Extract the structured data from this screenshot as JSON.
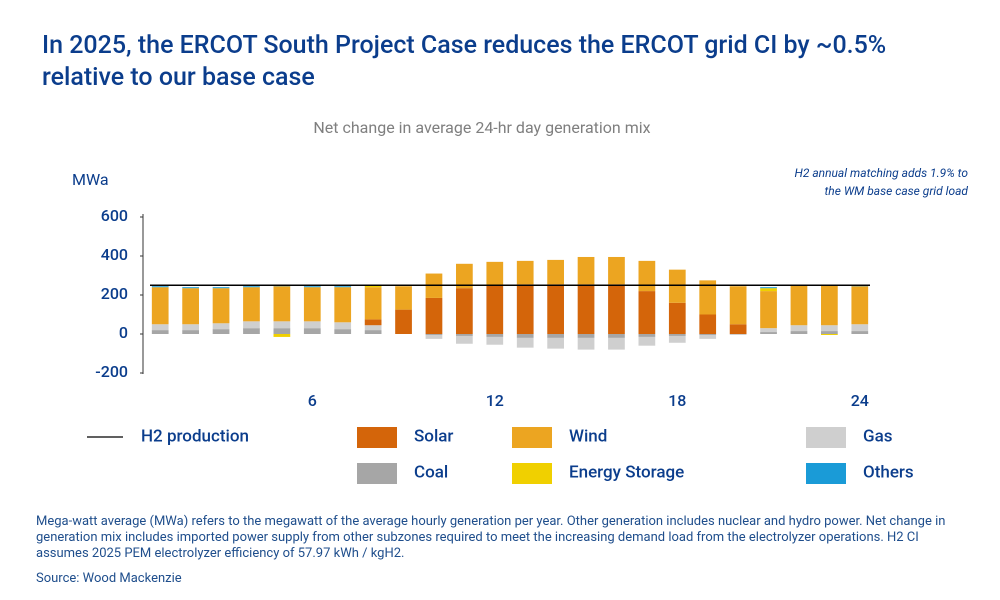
{
  "chart_data": {
    "type": "bar",
    "stacked": true,
    "title": "In 2025, the ERCOT South Project Case reduces the ERCOT grid CI by ~0.5% relative to our base case",
    "subtitle": "Net change in average 24-hr day generation mix",
    "y_label": "MWa",
    "annotation": [
      "H2 annual matching adds 1.9% to",
      "the WM base case grid load"
    ],
    "x": [
      1,
      2,
      3,
      4,
      5,
      6,
      7,
      8,
      9,
      10,
      11,
      12,
      13,
      14,
      15,
      16,
      17,
      18,
      19,
      20,
      21,
      22,
      23,
      24
    ],
    "xlim": [
      0.5,
      24.5
    ],
    "xticks": [
      6,
      12,
      18,
      24
    ],
    "ylim": [
      -200,
      600
    ],
    "yticks": [
      -200,
      0,
      200,
      400,
      600
    ],
    "line": {
      "name": "H2 production",
      "color": "#000000",
      "value": 250
    },
    "series": [
      {
        "name": "Coal",
        "color": "#a6a6a6",
        "values": [
          20,
          20,
          25,
          30,
          30,
          30,
          25,
          20,
          0,
          -5,
          -10,
          -15,
          -20,
          -20,
          -20,
          -20,
          -15,
          -10,
          -5,
          0,
          10,
          15,
          15,
          15
        ]
      },
      {
        "name": "Gas",
        "color": "#cfcfcf",
        "values": [
          30,
          30,
          30,
          35,
          35,
          35,
          35,
          25,
          0,
          -20,
          -40,
          -40,
          -50,
          -55,
          -60,
          -60,
          -45,
          -35,
          -20,
          -5,
          20,
          30,
          30,
          35
        ]
      },
      {
        "name": "Solar",
        "color": "#d4650a",
        "values": [
          0,
          0,
          0,
          0,
          0,
          0,
          0,
          30,
          125,
          185,
          235,
          250,
          255,
          255,
          255,
          255,
          220,
          160,
          100,
          50,
          0,
          0,
          0,
          0
        ]
      },
      {
        "name": "Wind",
        "color": "#eca521",
        "values": [
          190,
          185,
          180,
          175,
          180,
          175,
          180,
          165,
          120,
          125,
          125,
          120,
          120,
          125,
          140,
          140,
          155,
          170,
          175,
          195,
          190,
          205,
          205,
          195
        ]
      },
      {
        "name": "Energy Storage",
        "color": "#f0d000",
        "values": [
          0,
          0,
          0,
          0,
          -15,
          0,
          0,
          10,
          0,
          0,
          0,
          0,
          0,
          0,
          0,
          0,
          0,
          0,
          0,
          0,
          15,
          0,
          -5,
          0
        ]
      },
      {
        "name": "Others",
        "color": "#1a9bd7",
        "values": [
          5,
          5,
          5,
          5,
          5,
          5,
          5,
          0,
          0,
          0,
          0,
          0,
          0,
          0,
          0,
          0,
          0,
          0,
          0,
          0,
          5,
          0,
          0,
          5
        ]
      }
    ],
    "footnote": "Mega-watt average (MWa) refers to the megawatt of the average hourly generation per year. Other generation includes nuclear and hydro power. Net change in generation mix includes imported power supply from other subzones required to meet the increasing demand load from the electrolyzer operations. H2 CI assumes 2025 PEM electrolyzer efficiency of 57.97 kWh / kgH2.",
    "source": "Source: Wood Mackenzie"
  }
}
